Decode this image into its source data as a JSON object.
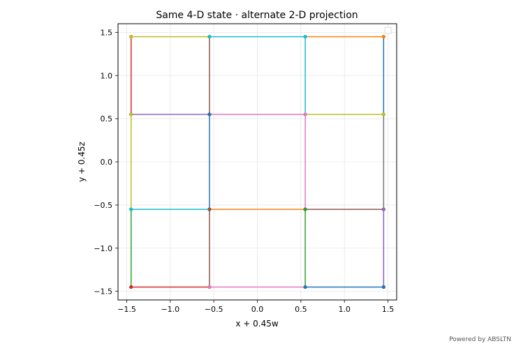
{
  "footer_text": "Powered by ABSLTN",
  "chart_data": {
    "type": "line",
    "title": "Same 4-D state · alternate 2-D projection",
    "xlabel": "x + 0.45w",
    "ylabel": "y + 0.45z",
    "xlim": [
      -1.6,
      1.6
    ],
    "ylim": [
      -1.6,
      1.6
    ],
    "xticks": [
      -1.5,
      -1.0,
      -0.5,
      0.0,
      0.5,
      1.0,
      1.5
    ],
    "yticks": [
      -1.5,
      -1.0,
      -0.5,
      0.0,
      0.5,
      1.0,
      1.5
    ],
    "xtick_labels": [
      "−1.5",
      "−1.0",
      "−0.5",
      "0.0",
      "0.5",
      "1.0",
      "1.5"
    ],
    "ytick_labels": [
      "−1.5",
      "−1.0",
      "−0.5",
      "0.0",
      "0.5",
      "1.0",
      "1.5"
    ],
    "grid": true,
    "legend": "top-right",
    "series": [
      {
        "color": "#1f77b4",
        "x": [
          1.45,
          1.45
        ],
        "y": [
          1.45,
          -1.45
        ]
      },
      {
        "color": "#ff7f0e",
        "x": [
          0.55,
          1.45
        ],
        "y": [
          1.45,
          1.45
        ]
      },
      {
        "color": "#2ca02c",
        "x": [
          -1.45,
          -1.45
        ],
        "y": [
          -0.55,
          -1.45
        ]
      },
      {
        "color": "#d62728",
        "x": [
          -1.45,
          -1.45
        ],
        "y": [
          1.45,
          0.55
        ]
      },
      {
        "color": "#9467bd",
        "x": [
          -1.45,
          -0.55
        ],
        "y": [
          0.55,
          0.55
        ]
      },
      {
        "color": "#8c564b",
        "x": [
          -0.55,
          -0.55
        ],
        "y": [
          1.45,
          0.55
        ]
      },
      {
        "color": "#e377c2",
        "x": [
          -0.55,
          0.55
        ],
        "y": [
          0.55,
          0.55
        ]
      },
      {
        "color": "#7f7f7f",
        "x": [
          1.45,
          1.45
        ],
        "y": [
          0.55,
          -0.55
        ]
      },
      {
        "color": "#bcbd22",
        "x": [
          -1.45,
          -0.55
        ],
        "y": [
          1.45,
          1.45
        ]
      },
      {
        "color": "#17becf",
        "x": [
          -0.55,
          0.55
        ],
        "y": [
          1.45,
          1.45
        ]
      },
      {
        "color": "#17becf",
        "x": [
          0.55,
          0.55
        ],
        "y": [
          1.45,
          0.55
        ]
      },
      {
        "color": "#bcbd22",
        "x": [
          0.55,
          1.45
        ],
        "y": [
          0.55,
          0.55
        ]
      },
      {
        "color": "#bcbd22",
        "x": [
          -1.45,
          -1.45
        ],
        "y": [
          0.55,
          -0.55
        ]
      },
      {
        "color": "#1f77b4",
        "x": [
          -0.55,
          -0.55
        ],
        "y": [
          0.55,
          -0.55
        ]
      },
      {
        "color": "#e377c2",
        "x": [
          0.55,
          0.55
        ],
        "y": [
          0.55,
          -0.55
        ]
      },
      {
        "color": "#17becf",
        "x": [
          -1.45,
          -0.55
        ],
        "y": [
          -0.55,
          -0.55
        ]
      },
      {
        "color": "#ff7f0e",
        "x": [
          -0.55,
          0.55
        ],
        "y": [
          -0.55,
          -0.55
        ]
      },
      {
        "color": "#8c564b",
        "x": [
          0.55,
          1.45
        ],
        "y": [
          -0.55,
          -0.55
        ]
      },
      {
        "color": "#8c564b",
        "x": [
          -0.55,
          -0.55
        ],
        "y": [
          -0.55,
          -1.45
        ]
      },
      {
        "color": "#2ca02c",
        "x": [
          0.55,
          0.55
        ],
        "y": [
          -0.55,
          -1.45
        ]
      },
      {
        "color": "#9467bd",
        "x": [
          1.45,
          1.45
        ],
        "y": [
          -0.55,
          -1.45
        ]
      },
      {
        "color": "#d62728",
        "x": [
          -1.45,
          -0.55
        ],
        "y": [
          -1.45,
          -1.45
        ]
      },
      {
        "color": "#e377c2",
        "x": [
          -0.55,
          0.55
        ],
        "y": [
          -1.45,
          -1.45
        ]
      },
      {
        "color": "#1f77b4",
        "x": [
          0.55,
          1.45
        ],
        "y": [
          -1.45,
          -1.45
        ]
      }
    ]
  }
}
